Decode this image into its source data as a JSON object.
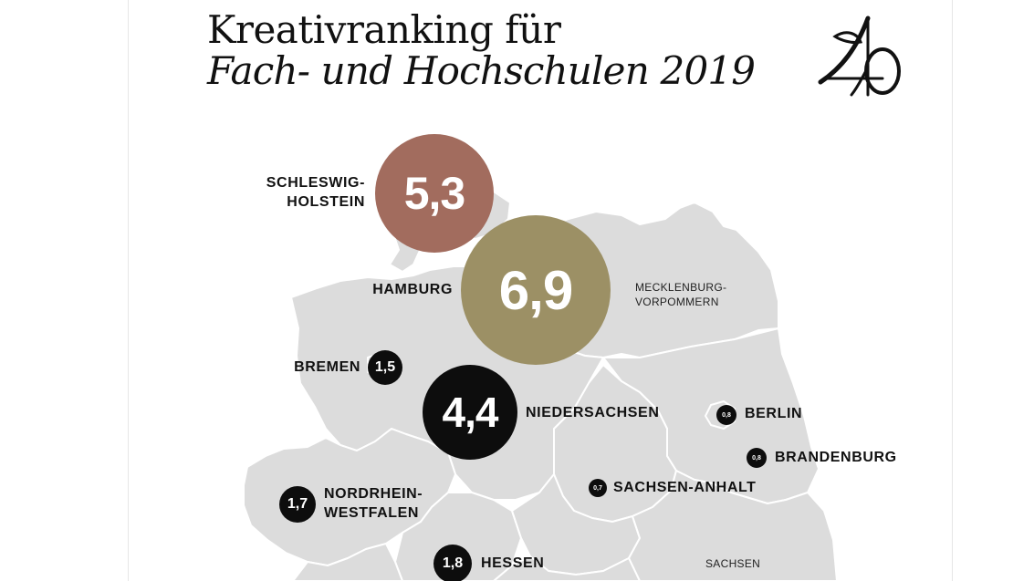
{
  "title": {
    "line1": "Kreativranking für",
    "line2": "Fach- und Hochschulen 2019"
  },
  "colors": {
    "map_fill": "#dcdcdc",
    "border": "#ffffff",
    "schleswig_holstein": "#a26c5e",
    "hamburg": "#9c9065",
    "bubble_dark": "#0d0d0d"
  },
  "regions": {
    "schleswig_holstein": {
      "name_line1": "SCHLESWIG-",
      "name_line2": "HOLSTEIN",
      "value": "5,3"
    },
    "hamburg": {
      "name": "HAMBURG",
      "value": "6,9"
    },
    "mecklenburg": {
      "name_line1": "MECKLENBURG-",
      "name_line2": "VORPOMMERN"
    },
    "bremen": {
      "name": "BREMEN",
      "value": "1,5"
    },
    "niedersachsen": {
      "name": "NIEDERSACHSEN",
      "value": "4,4"
    },
    "berlin": {
      "name": "BERLIN",
      "value": "0,8"
    },
    "brandenburg": {
      "name": "BRANDENBURG",
      "value": "0,8"
    },
    "nrw": {
      "name_line1": "NORDRHEIN-",
      "name_line2": "WESTFALEN",
      "value": "1,7"
    },
    "sachsen_anhalt": {
      "name": "SACHSEN-ANHALT",
      "value": "0,7"
    },
    "hessen": {
      "name": "HESSEN",
      "value": "1,8"
    },
    "sachsen": {
      "name": "SACHSEN"
    }
  }
}
